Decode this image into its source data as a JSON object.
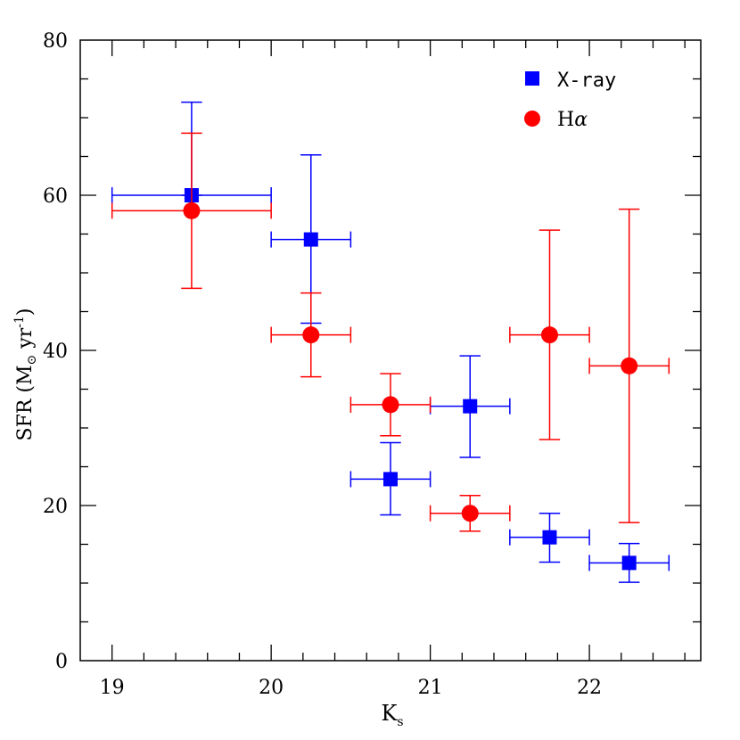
{
  "chart_data": {
    "type": "scatter",
    "title": "",
    "xlabel_main": "K",
    "xlabel_sub": "s",
    "ylabel_prefix": "SFR (M",
    "ylabel_sun": "⊙",
    "ylabel_unit": " yr",
    "ylabel_exp": "-1",
    "ylabel_close": ")",
    "xlim": [
      18.8,
      22.7
    ],
    "ylim": [
      0,
      80
    ],
    "xticks": [
      {
        "value": 19,
        "label": "19"
      },
      {
        "value": 20,
        "label": "20"
      },
      {
        "value": 21,
        "label": "21"
      },
      {
        "value": 22,
        "label": "22"
      }
    ],
    "yticks": [
      {
        "value": 0,
        "label": "0"
      },
      {
        "value": 20,
        "label": "20"
      },
      {
        "value": 40,
        "label": "40"
      },
      {
        "value": 60,
        "label": "60"
      },
      {
        "value": 80,
        "label": "80"
      }
    ],
    "legend_position": "top-right",
    "series": [
      {
        "name": "X-ray",
        "label": "X-ray",
        "marker": "square",
        "color": "#0000ff",
        "points": [
          {
            "x": 19.5,
            "y": 60.0,
            "xerr": 0.5,
            "yerr_lo": 60.0,
            "yerr_hi": 72.0
          },
          {
            "x": 20.25,
            "y": 54.3,
            "xerr": 0.25,
            "yerr_lo": 43.5,
            "yerr_hi": 65.2
          },
          {
            "x": 20.75,
            "y": 23.4,
            "xerr": 0.25,
            "yerr_lo": 18.8,
            "yerr_hi": 28.1
          },
          {
            "x": 21.25,
            "y": 32.8,
            "xerr": 0.25,
            "yerr_lo": 26.2,
            "yerr_hi": 39.3
          },
          {
            "x": 21.75,
            "y": 15.9,
            "xerr": 0.25,
            "yerr_lo": 12.7,
            "yerr_hi": 19.0
          },
          {
            "x": 22.25,
            "y": 12.6,
            "xerr": 0.25,
            "yerr_lo": 10.1,
            "yerr_hi": 15.1
          }
        ]
      },
      {
        "name": "Hα",
        "label_main": "H",
        "label_greek": "α",
        "marker": "circle",
        "color": "#ff0000",
        "points": [
          {
            "x": 19.5,
            "y": 58.0,
            "xerr": 0.5,
            "yerr_lo": 48.0,
            "yerr_hi": 68.0
          },
          {
            "x": 20.25,
            "y": 42.0,
            "xerr": 0.25,
            "yerr_lo": 36.6,
            "yerr_hi": 47.4
          },
          {
            "x": 20.75,
            "y": 33.0,
            "xerr": 0.25,
            "yerr_lo": 29.0,
            "yerr_hi": 37.0
          },
          {
            "x": 21.25,
            "y": 19.0,
            "xerr": 0.25,
            "yerr_lo": 16.7,
            "yerr_hi": 21.3
          },
          {
            "x": 21.75,
            "y": 42.0,
            "xerr": 0.25,
            "yerr_lo": 28.5,
            "yerr_hi": 55.5
          },
          {
            "x": 22.25,
            "y": 38.0,
            "xerr": 0.25,
            "yerr_lo": 17.8,
            "yerr_hi": 58.2
          }
        ]
      }
    ]
  }
}
